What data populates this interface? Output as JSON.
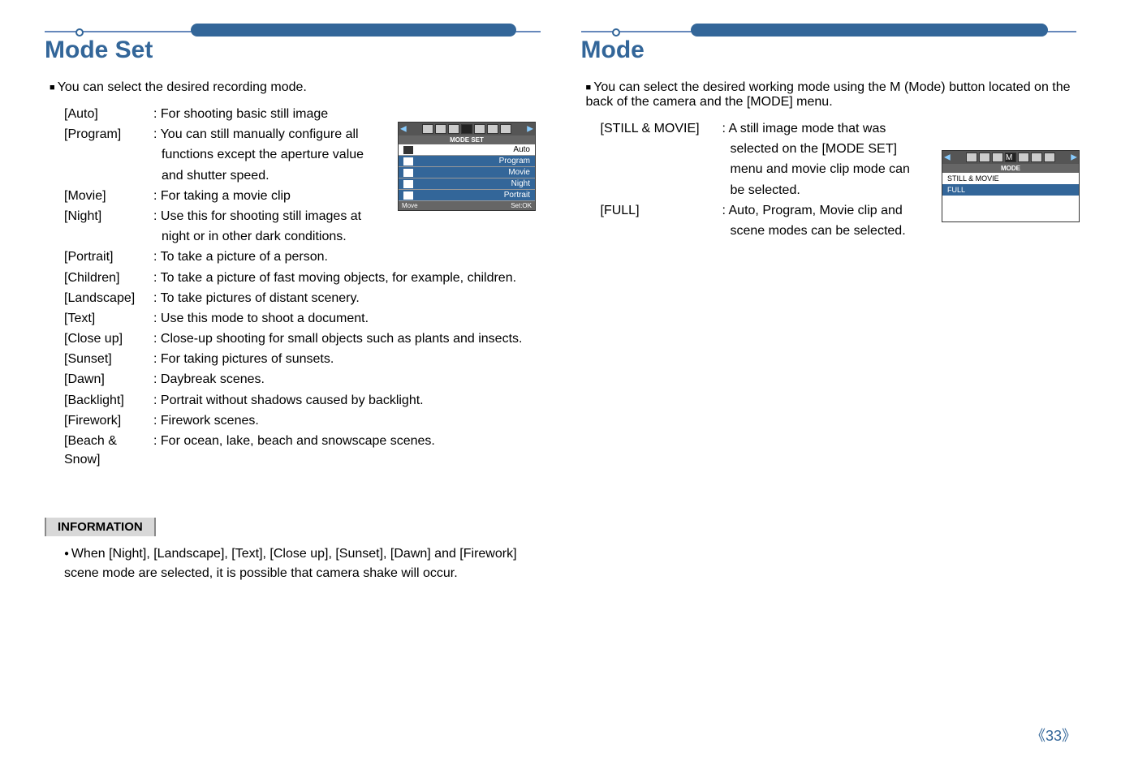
{
  "left": {
    "title": "Mode Set",
    "lead": "You can select the desired recording mode.",
    "items": [
      {
        "label": "[Auto]",
        "desc": ": For shooting basic still image"
      },
      {
        "label": "[Program]",
        "desc": ": You can still manually configure all"
      },
      {
        "label": "",
        "desc": "  functions except the aperture value"
      },
      {
        "label": "",
        "desc": "  and shutter speed."
      },
      {
        "label": "[Movie]",
        "desc": ": For taking a movie clip"
      },
      {
        "label": "[Night]",
        "desc": ": Use this for shooting still images at"
      },
      {
        "label": "",
        "desc": "  night or in other dark conditions."
      },
      {
        "label": "[Portrait]",
        "desc": ": To take a picture of a person."
      },
      {
        "label": "[Children]",
        "desc": ": To take a picture of fast moving objects, for example, children."
      },
      {
        "label": "[Landscape]",
        "desc": ": To take pictures of distant scenery."
      },
      {
        "label": "[Text]",
        "desc": ": Use this mode to shoot a document."
      },
      {
        "label": "[Close up]",
        "desc": ": Close-up shooting for small objects such as plants and insects."
      },
      {
        "label": "[Sunset]",
        "desc": ": For taking pictures of sunsets."
      },
      {
        "label": "[Dawn]",
        "desc": ": Daybreak scenes."
      },
      {
        "label": "[Backlight]",
        "desc": ": Portrait without shadows caused by backlight."
      },
      {
        "label": "[Firework]",
        "desc": ": Firework scenes."
      },
      {
        "label": "[Beach & Snow]",
        "desc": ": For ocean, lake, beach and snowscape scenes."
      }
    ],
    "info_title": "INFORMATION",
    "info_body": "When [Night], [Landscape], [Text], [Close up], [Sunset], [Dawn] and [Firework] scene mode are selected, it is possible that camera shake will occur.",
    "screen": {
      "header": "MODE SET",
      "rows": [
        {
          "text": "Auto",
          "sel": false
        },
        {
          "text": "Program",
          "sel": true
        },
        {
          "text": "Movie",
          "sel": true
        },
        {
          "text": "Night",
          "sel": true
        },
        {
          "text": "Portrait",
          "sel": true
        }
      ],
      "footer_left": "Move",
      "footer_right": "Set:OK"
    }
  },
  "right": {
    "title": "Mode",
    "lead": "You can select the desired working mode using the M (Mode) button located on the back of the camera and the [MODE] menu.",
    "items": [
      {
        "label": "[STILL & MOVIE]",
        "desc": ": A still image mode that was"
      },
      {
        "label": "",
        "desc": "  selected on the [MODE SET]"
      },
      {
        "label": "",
        "desc": "  menu and movie clip mode can"
      },
      {
        "label": "",
        "desc": "  be selected."
      },
      {
        "label": "[FULL]",
        "desc": ": Auto, Program, Movie clip and"
      },
      {
        "label": "",
        "desc": "  scene modes can be selected."
      }
    ],
    "screen": {
      "header": "MODE",
      "rows": [
        {
          "text": "STILL & MOVIE",
          "sel": false
        },
        {
          "text": "FULL",
          "sel": true
        }
      ]
    }
  },
  "page": "《33》",
  "colors": {
    "accent": "#336699",
    "sel_bg": "#336699",
    "gray": "#d8d8d8"
  }
}
